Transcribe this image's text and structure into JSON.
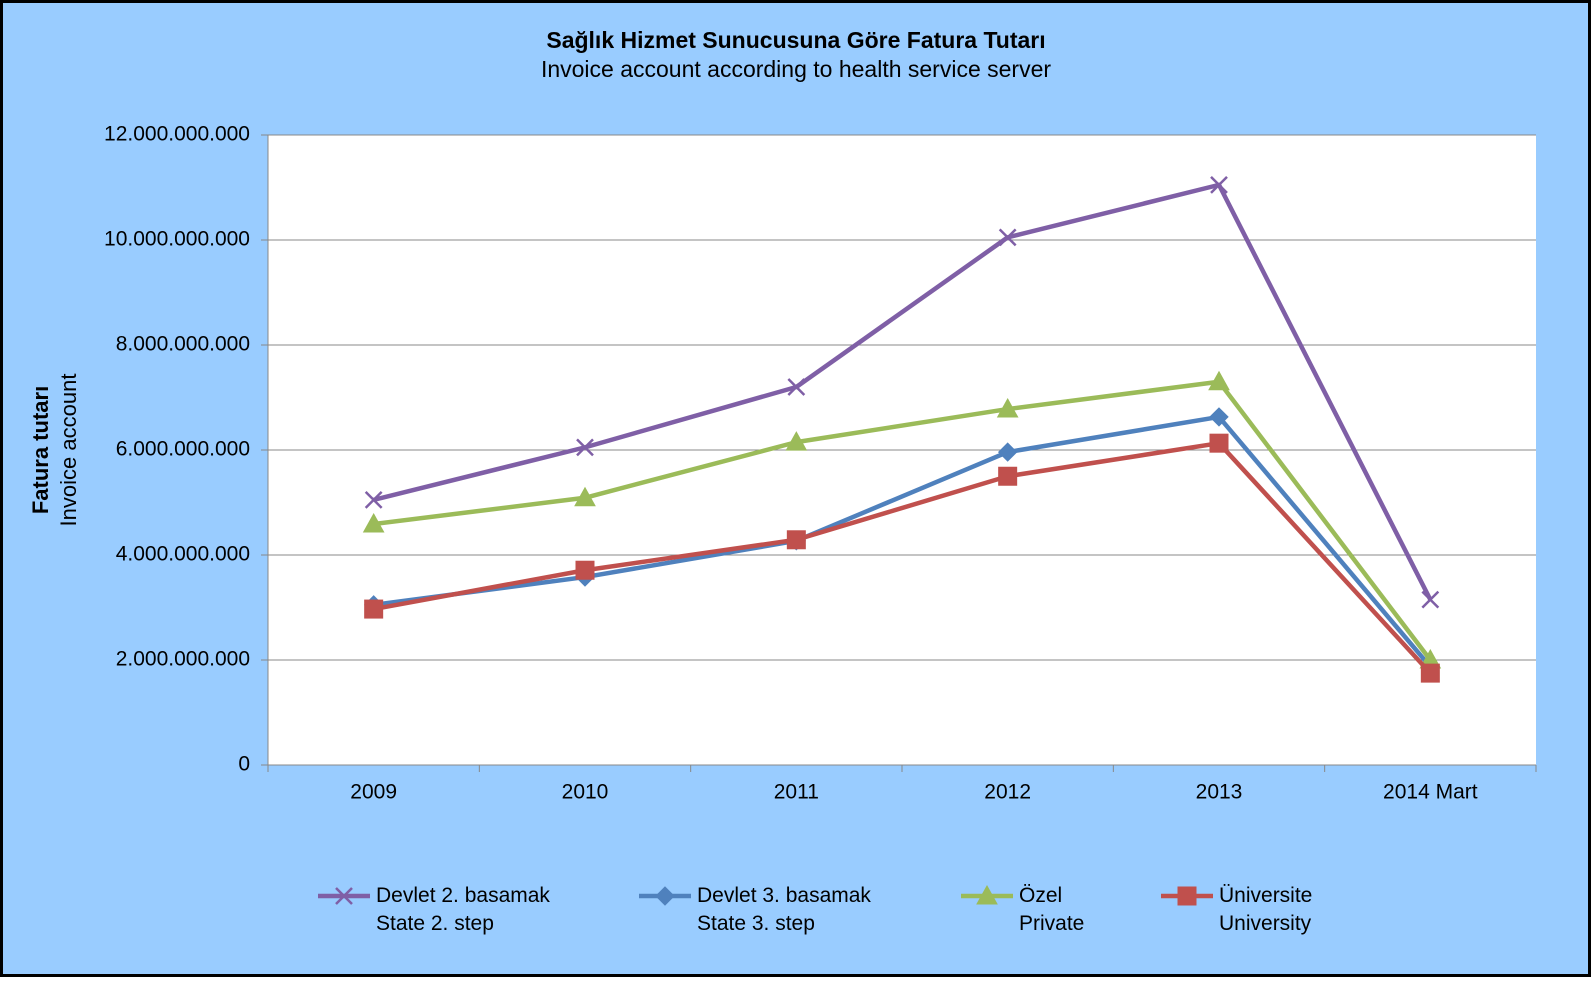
{
  "chart_data": {
    "type": "line",
    "title": "Sağlık Hizmet Sunucusuna Göre Fatura Tutarı",
    "subtitle": "Invoice account according to health service server",
    "ylabel": "Fatura tutarı",
    "ylabel_sub": "Invoice account",
    "categories": [
      "2009",
      "2010",
      "2011",
      "2012",
      "2013",
      "2014 Mart"
    ],
    "series": [
      {
        "name": "Devlet 2. basamak\nState 2. step",
        "color": "#7f5fa6",
        "marker": "x",
        "values": [
          5050000000,
          6050000000,
          7200000000,
          10050000000,
          11050000000,
          3150000000
        ]
      },
      {
        "name": "Devlet 3. basamak\nState 3. step",
        "color": "#4f81bd",
        "marker": "diamond",
        "values": [
          3050000000,
          3580000000,
          4270000000,
          5960000000,
          6630000000,
          1870000000
        ]
      },
      {
        "name": "Özel\nPrivate",
        "color": "#9bbb59",
        "marker": "triangle",
        "values": [
          4590000000,
          5090000000,
          6150000000,
          6780000000,
          7300000000,
          2000000000
        ]
      },
      {
        "name": "Üniversite\nUniversity",
        "color": "#c0504d",
        "marker": "square",
        "values": [
          2970000000,
          3710000000,
          4290000000,
          5500000000,
          6130000000,
          1750000000
        ]
      }
    ],
    "ylim": [
      0,
      12000000000
    ],
    "yticks": [
      0,
      {
        "value": 2000000000,
        "label": "2.000.000.000"
      },
      {
        "value": 4000000000,
        "label": "4.000.000.000"
      },
      {
        "value": 6000000000,
        "label": "6.000.000.000"
      },
      {
        "value": 8000000000,
        "label": "8.000.000.000"
      },
      {
        "value": 10000000000,
        "label": "10.000.000.000"
      },
      {
        "value": 12000000000,
        "label": "12.000.000.000"
      }
    ],
    "grid": true,
    "legend": "bottom"
  }
}
